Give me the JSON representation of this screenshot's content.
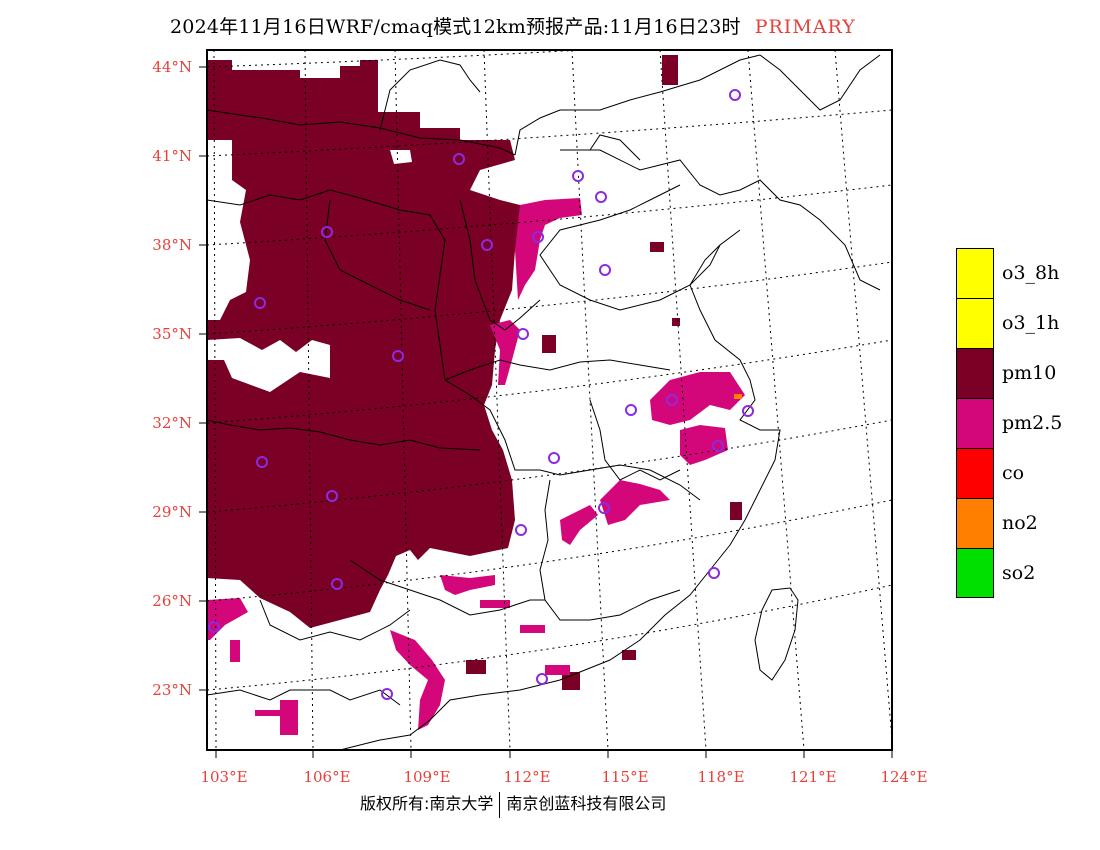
{
  "header": {
    "title": "2024年11月16日WRF/cmaq模式12km预报产品:11月16日23时",
    "tag": "PRIMARY"
  },
  "map": {
    "lat_labels": [
      "44°N",
      "41°N",
      "38°N",
      "35°N",
      "32°N",
      "29°N",
      "26°N",
      "23°N"
    ],
    "lon_labels": [
      "103°E",
      "106°E",
      "109°E",
      "112°E",
      "115°E",
      "118°E",
      "121°E",
      "124°E"
    ]
  },
  "legend": {
    "items": [
      {
        "label": "o3_8h",
        "color": "#ffff00"
      },
      {
        "label": "o3_1h",
        "color": "#ffff00"
      },
      {
        "label": "pm10",
        "color": "#7a0026"
      },
      {
        "label": "pm2.5",
        "color": "#d4077a"
      },
      {
        "label": "co",
        "color": "#ff0000"
      },
      {
        "label": "no2",
        "color": "#ff8000"
      },
      {
        "label": "so2",
        "color": "#00e000"
      }
    ]
  },
  "footer": {
    "left": "版权所有:南京大学",
    "right": "南京创蓝科技有限公司"
  }
}
